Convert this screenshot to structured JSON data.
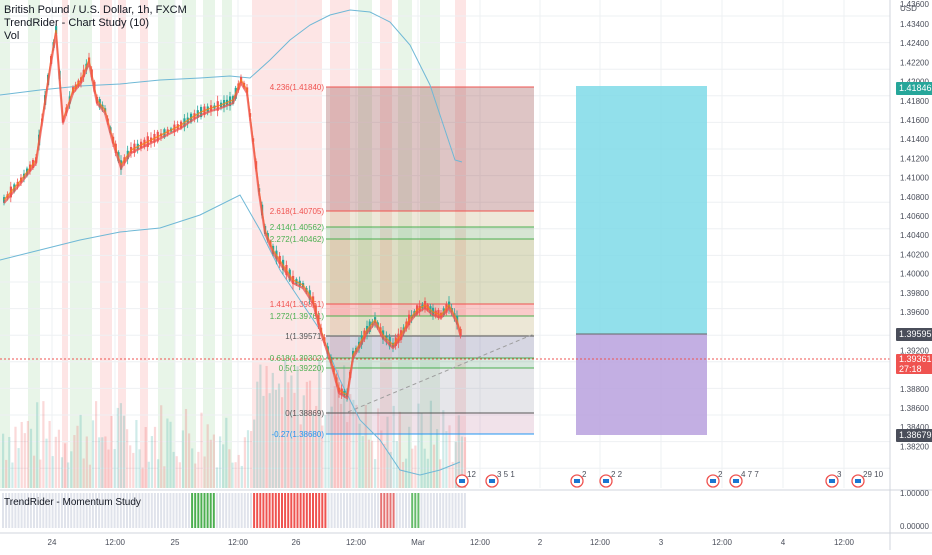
{
  "header": {
    "symbol_line": "British Pound / U.S. Dollar, 1h, FXCM",
    "study_line": "TrendRider - Chart Study (10)",
    "vol_line": "Vol"
  },
  "price_axis": {
    "currency": "USD",
    "ticks": [
      "1.43600",
      "1.43400",
      "1.42400",
      "1.42200",
      "1.42000",
      "1.41800",
      "1.41600",
      "1.41400",
      "1.41200",
      "1.41000",
      "1.40800",
      "1.40600",
      "1.40400",
      "1.40200",
      "1.40000",
      "1.39800",
      "1.39600",
      "1.39400",
      "1.39200",
      "1.39000",
      "1.38800",
      "1.38600",
      "1.38400",
      "1.38200"
    ],
    "tags": [
      {
        "text": "1.41846",
        "color": "#26a69a"
      },
      {
        "text": "1.39595",
        "color": "#4a4e5a"
      },
      {
        "text": "1.39361",
        "sub": "27:18",
        "color": "#ef5350"
      },
      {
        "text": "1.38679",
        "color": "#4a4e5a"
      }
    ]
  },
  "indicator_axis": {
    "ticks": [
      "1.00000",
      "0.00000"
    ]
  },
  "time_axis": {
    "labels": [
      "24",
      "12:00",
      "25",
      "12:00",
      "26",
      "12:00",
      "Mar",
      "12:00",
      "2",
      "12:00",
      "3",
      "12:00",
      "4",
      "12:00"
    ]
  },
  "fib_levels": [
    {
      "label": "4.236(1.41840)",
      "color": "#ef5350"
    },
    {
      "label": "2.618(1.40705)",
      "color": "#ef5350"
    },
    {
      "label": "2.414(1.40562)",
      "color": "#4caf50"
    },
    {
      "label": "2.272(1.40462)",
      "color": "#4caf50"
    },
    {
      "label": "1.414(1.39861)",
      "color": "#ef5350"
    },
    {
      "label": "1.272(1.39761)",
      "color": "#4caf50"
    },
    {
      "label": "1(1.39571)",
      "color": "#555555"
    },
    {
      "label": "0.618(1.39302)",
      "color": "#4caf50"
    },
    {
      "label": "0.5(1.39220)",
      "color": "#4caf50"
    },
    {
      "label": "0(1.38869)",
      "color": "#555555"
    },
    {
      "label": "-0.27(1.38680)",
      "color": "#2196f3"
    }
  ],
  "event_markers": [
    "12",
    "3 5 1",
    "2",
    "2 2",
    "2",
    "4 7 7",
    "3",
    "29 10"
  ],
  "indicator": {
    "title": "TrendRider - Momentum Study"
  },
  "colors": {
    "bull": "#26a69a",
    "bear": "#ef5350",
    "long_target": "#7fdbe8",
    "long_stop": "#b9a1de"
  }
}
